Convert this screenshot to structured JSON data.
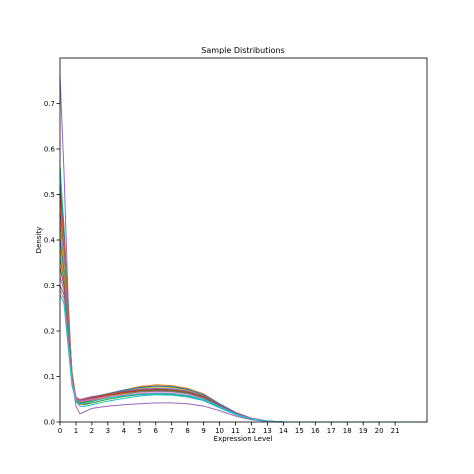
{
  "chart_data": {
    "type": "line",
    "title": "Sample Distributions",
    "xlabel": "Expression Level",
    "ylabel": "Density",
    "xlim": [
      0,
      23
    ],
    "ylim": [
      0,
      0.8
    ],
    "grid": false,
    "legend": "none",
    "x_ticks": [
      "0",
      "1",
      "2",
      "3",
      "4",
      "5",
      "6",
      "7",
      "8",
      "9",
      "10",
      "11",
      "12",
      "13",
      "14",
      "15",
      "16",
      "17",
      "18",
      "19",
      "20",
      "21"
    ],
    "y_ticks": [
      "0.0",
      "0.1",
      "0.2",
      "0.3",
      "0.4",
      "0.5",
      "0.6",
      "0.7"
    ],
    "x": [
      0,
      0.25,
      0.5,
      0.75,
      1,
      1.25,
      1.5,
      2,
      3,
      4,
      5,
      6,
      7,
      8,
      9,
      10,
      11,
      12,
      13,
      14,
      15,
      16,
      18,
      20,
      23
    ],
    "series": [
      {
        "color": "#9467bd",
        "values": [
          0.76,
          0.55,
          0.28,
          0.1,
          0.035,
          0.018,
          0.022,
          0.03,
          0.035,
          0.038,
          0.04,
          0.042,
          0.042,
          0.04,
          0.035,
          0.025,
          0.013,
          0.005,
          0.001,
          0,
          0,
          0,
          0,
          0,
          0
        ]
      },
      {
        "color": "#2ca02c",
        "values": [
          0.56,
          0.43,
          0.25,
          0.11,
          0.05,
          0.04,
          0.038,
          0.042,
          0.05,
          0.056,
          0.06,
          0.062,
          0.061,
          0.057,
          0.048,
          0.032,
          0.017,
          0.007,
          0.002,
          0,
          0,
          0,
          0,
          0,
          0
        ]
      },
      {
        "color": "#17becf",
        "values": [
          0.55,
          0.42,
          0.24,
          0.1,
          0.045,
          0.035,
          0.034,
          0.038,
          0.046,
          0.052,
          0.057,
          0.06,
          0.059,
          0.055,
          0.047,
          0.031,
          0.016,
          0.006,
          0.002,
          0,
          0,
          0,
          0,
          0,
          0
        ]
      },
      {
        "color": "#1f77b4",
        "values": [
          0.52,
          0.41,
          0.25,
          0.11,
          0.05,
          0.04,
          0.042,
          0.05,
          0.062,
          0.07,
          0.076,
          0.078,
          0.076,
          0.07,
          0.058,
          0.038,
          0.02,
          0.008,
          0.002,
          0,
          0,
          0,
          0,
          0,
          0
        ]
      },
      {
        "color": "#d62728",
        "values": [
          0.5,
          0.4,
          0.24,
          0.1,
          0.05,
          0.045,
          0.048,
          0.052,
          0.058,
          0.064,
          0.068,
          0.07,
          0.068,
          0.063,
          0.053,
          0.035,
          0.019,
          0.007,
          0.002,
          0,
          0,
          0,
          0,
          0,
          0
        ]
      },
      {
        "color": "#ff7f0e",
        "values": [
          0.48,
          0.39,
          0.24,
          0.11,
          0.055,
          0.045,
          0.044,
          0.048,
          0.06,
          0.07,
          0.078,
          0.082,
          0.08,
          0.074,
          0.062,
          0.04,
          0.021,
          0.008,
          0.002,
          0,
          0,
          0,
          0,
          0,
          0
        ]
      },
      {
        "color": "#8c564b",
        "values": [
          0.46,
          0.38,
          0.23,
          0.1,
          0.05,
          0.04,
          0.04,
          0.045,
          0.055,
          0.065,
          0.073,
          0.078,
          0.077,
          0.071,
          0.06,
          0.039,
          0.02,
          0.008,
          0.002,
          0,
          0,
          0,
          0,
          0,
          0
        ]
      },
      {
        "color": "#e377c2",
        "values": [
          0.44,
          0.36,
          0.22,
          0.1,
          0.055,
          0.05,
          0.052,
          0.056,
          0.06,
          0.064,
          0.066,
          0.067,
          0.066,
          0.062,
          0.052,
          0.035,
          0.018,
          0.007,
          0.002,
          0,
          0,
          0,
          0,
          0,
          0
        ]
      },
      {
        "color": "#7f7f7f",
        "values": [
          0.43,
          0.35,
          0.22,
          0.1,
          0.05,
          0.042,
          0.043,
          0.048,
          0.056,
          0.062,
          0.066,
          0.068,
          0.067,
          0.063,
          0.053,
          0.036,
          0.019,
          0.007,
          0.002,
          0,
          0,
          0,
          0,
          0,
          0
        ]
      },
      {
        "color": "#bcbd22",
        "values": [
          0.42,
          0.34,
          0.21,
          0.1,
          0.05,
          0.043,
          0.044,
          0.05,
          0.06,
          0.068,
          0.074,
          0.077,
          0.076,
          0.07,
          0.059,
          0.039,
          0.02,
          0.008,
          0.002,
          0,
          0,
          0,
          0,
          0,
          0
        ]
      },
      {
        "color": "#1f77b4",
        "values": [
          0.4,
          0.33,
          0.21,
          0.1,
          0.05,
          0.044,
          0.046,
          0.052,
          0.062,
          0.07,
          0.076,
          0.079,
          0.078,
          0.072,
          0.06,
          0.04,
          0.021,
          0.008,
          0.002,
          0,
          0,
          0,
          0,
          0,
          0
        ]
      },
      {
        "color": "#ff7f0e",
        "values": [
          0.38,
          0.32,
          0.2,
          0.09,
          0.045,
          0.038,
          0.04,
          0.046,
          0.056,
          0.063,
          0.069,
          0.072,
          0.071,
          0.066,
          0.056,
          0.037,
          0.019,
          0.007,
          0.002,
          0,
          0,
          0,
          0,
          0,
          0
        ]
      },
      {
        "color": "#2ca02c",
        "values": [
          0.36,
          0.31,
          0.2,
          0.09,
          0.048,
          0.042,
          0.044,
          0.05,
          0.058,
          0.064,
          0.068,
          0.07,
          0.069,
          0.064,
          0.054,
          0.036,
          0.019,
          0.007,
          0.002,
          0,
          0,
          0,
          0,
          0,
          0
        ]
      },
      {
        "color": "#d62728",
        "values": [
          0.34,
          0.3,
          0.19,
          0.09,
          0.05,
          0.045,
          0.047,
          0.052,
          0.059,
          0.065,
          0.069,
          0.071,
          0.07,
          0.065,
          0.055,
          0.037,
          0.019,
          0.007,
          0.002,
          0,
          0,
          0,
          0,
          0,
          0
        ]
      },
      {
        "color": "#9467bd",
        "values": [
          0.32,
          0.29,
          0.19,
          0.09,
          0.05,
          0.046,
          0.048,
          0.054,
          0.062,
          0.068,
          0.072,
          0.074,
          0.073,
          0.068,
          0.057,
          0.038,
          0.02,
          0.008,
          0.002,
          0,
          0,
          0,
          0,
          0,
          0
        ]
      },
      {
        "color": "#8c564b",
        "values": [
          0.3,
          0.28,
          0.18,
          0.09,
          0.052,
          0.048,
          0.05,
          0.055,
          0.062,
          0.067,
          0.07,
          0.072,
          0.071,
          0.066,
          0.056,
          0.037,
          0.02,
          0.008,
          0.002,
          0,
          0,
          0,
          0,
          0,
          0
        ]
      },
      {
        "color": "#e377c2",
        "values": [
          0.29,
          0.27,
          0.18,
          0.09,
          0.05,
          0.045,
          0.046,
          0.05,
          0.056,
          0.06,
          0.063,
          0.064,
          0.063,
          0.059,
          0.05,
          0.034,
          0.018,
          0.007,
          0.002,
          0,
          0,
          0,
          0,
          0,
          0
        ]
      },
      {
        "color": "#17becf",
        "values": [
          0.28,
          0.26,
          0.17,
          0.08,
          0.045,
          0.04,
          0.041,
          0.046,
          0.053,
          0.058,
          0.061,
          0.063,
          0.062,
          0.058,
          0.049,
          0.033,
          0.017,
          0.006,
          0.002,
          0,
          0,
          0,
          0,
          0,
          0
        ]
      }
    ]
  }
}
